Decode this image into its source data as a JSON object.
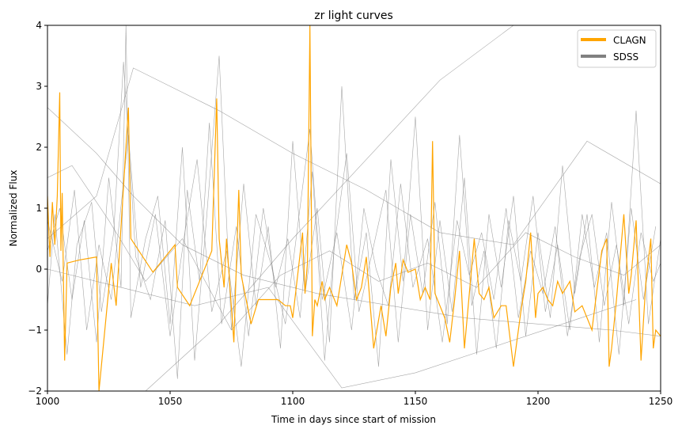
{
  "chart_data": {
    "type": "line",
    "title": "zr light curves",
    "xlabel": "Time in days since start of mission",
    "ylabel": "Normalized Flux",
    "xlim": [
      1000,
      1250
    ],
    "ylim": [
      -2,
      4
    ],
    "xticks": [
      "1000",
      "1050",
      "1100",
      "1150",
      "1200",
      "1250"
    ],
    "yticks": [
      "−2",
      "−1",
      "0",
      "1",
      "2",
      "3",
      "4"
    ],
    "grid": false,
    "legend": "top-right",
    "colors": {
      "CLAGN": "#ffa500",
      "SDSS": "#808080"
    },
    "legend_entries": [
      "CLAGN",
      "SDSS"
    ],
    "series": [
      {
        "name": "CLAGN",
        "color": "#ffa500",
        "x": [
          1000,
          1001,
          1002,
          1003,
          1004,
          1005,
          1005.5,
          1006,
          1007,
          1008,
          1013,
          1020,
          1021,
          1026,
          1028,
          1033,
          1034,
          1043,
          1052,
          1053,
          1058,
          1060,
          1067,
          1069,
          1070,
          1072,
          1073,
          1076,
          1078,
          1079,
          1083,
          1086,
          1094,
          1097,
          1099,
          1100,
          1104,
          1105,
          1106,
          1107,
          1108,
          1109,
          1110,
          1112,
          1113,
          1115,
          1118,
          1120,
          1122,
          1124,
          1126,
          1128,
          1130,
          1133,
          1136,
          1138,
          1140,
          1142,
          1143,
          1145,
          1147,
          1150,
          1152,
          1154,
          1156,
          1157,
          1158,
          1160,
          1162,
          1164,
          1166,
          1168,
          1170,
          1172,
          1174,
          1176,
          1178,
          1180,
          1182,
          1185,
          1187,
          1190,
          1193,
          1195,
          1197,
          1199,
          1200,
          1202,
          1204,
          1206,
          1208,
          1210,
          1213,
          1215,
          1218,
          1222,
          1226,
          1228,
          1229,
          1230,
          1232,
          1235,
          1237,
          1238,
          1240,
          1242,
          1244,
          1246,
          1247,
          1248,
          1250
        ],
        "y": [
          1.2,
          0.2,
          1.1,
          0.4,
          1.2,
          2.9,
          0.3,
          1.25,
          -1.5,
          0.1,
          0.15,
          0.2,
          -2,
          0.1,
          -0.6,
          2.65,
          0.5,
          -0.05,
          0.4,
          -0.3,
          -0.6,
          -0.4,
          0.3,
          2.8,
          0.5,
          -0.3,
          0.5,
          -1.2,
          1.3,
          -0.1,
          -0.9,
          -0.5,
          -0.5,
          -0.6,
          -0.6,
          -0.8,
          0.6,
          -0.4,
          0.1,
          4,
          -1.1,
          -0.5,
          -0.6,
          -0.2,
          -0.5,
          -0.3,
          -0.6,
          -0.1,
          0.4,
          0.1,
          -0.5,
          -0.3,
          0.2,
          -1.3,
          -0.6,
          -1.1,
          -0.3,
          0.1,
          -0.4,
          0.15,
          -0.05,
          0.0,
          -0.5,
          -0.3,
          -0.5,
          2.1,
          -0.4,
          -0.6,
          -0.8,
          -1.2,
          -0.5,
          0.3,
          -1.3,
          -0.4,
          0.5,
          -0.4,
          -0.5,
          -0.3,
          -0.8,
          -0.6,
          -0.6,
          -1.6,
          -0.7,
          -0.2,
          0.6,
          -0.8,
          -0.4,
          -0.3,
          -0.5,
          -0.6,
          -0.2,
          -0.4,
          -0.2,
          -0.7,
          -0.6,
          -1.0,
          0.3,
          0.5,
          -1.6,
          -1.3,
          -0.5,
          0.9,
          -0.4,
          -0.1,
          0.8,
          -1.5,
          -0.2,
          0.5,
          -1.3,
          -1.0,
          -1.1
        ]
      },
      {
        "name": "SDSS",
        "color": "#808080",
        "x": [
          1000,
          1005,
          1010,
          1015,
          1020,
          1025,
          1030,
          1032,
          1034,
          1040,
          1045,
          1050,
          1055,
          1060,
          1065,
          1070,
          1075,
          1080,
          1085,
          1090,
          1095,
          1100,
          1105,
          1110,
          1115,
          1120,
          1125,
          1130,
          1135,
          1140,
          1145,
          1150,
          1155,
          1160,
          1165,
          1170,
          1175,
          1180,
          1185,
          1190,
          1195,
          1200,
          1205,
          1210,
          1215,
          1220,
          1225,
          1230,
          1235,
          1240,
          1245,
          1250
        ],
        "y": [
          0.3,
          1.0,
          -0.5,
          0.8,
          -1.2,
          1.5,
          -0.3,
          4.0,
          -0.8,
          0.5,
          1.2,
          -0.9,
          2.0,
          -1.5,
          0.9,
          3.5,
          -1.0,
          1.4,
          -0.6,
          0.7,
          -1.3,
          2.1,
          -0.4,
          1.0,
          -1.2,
          3.0,
          -0.5,
          0.6,
          -1.6,
          1.8,
          -0.2,
          2.5,
          -1.0,
          0.8,
          -0.7,
          1.5,
          -1.4,
          0.9,
          -0.3,
          1.2,
          -1.1,
          0.6,
          -0.8,
          1.7,
          -0.4,
          0.9,
          -1.2,
          1.1,
          -0.6,
          2.6,
          -0.9,
          0.5
        ]
      },
      {
        "name": "SDSS",
        "color": "#808080",
        "x": [
          1000,
          1003,
          1008,
          1012,
          1018,
          1022,
          1027,
          1031,
          1036,
          1042,
          1048,
          1053,
          1057,
          1062,
          1066,
          1071,
          1077,
          1082,
          1088,
          1093,
          1098,
          1103,
          1108,
          1113,
          1117,
          1122,
          1127,
          1132,
          1138,
          1143,
          1148,
          1153,
          1158,
          1163,
          1168,
          1173,
          1178,
          1183,
          1188,
          1193,
          1198,
          1203,
          1208,
          1213,
          1218,
          1223,
          1228,
          1233,
          1238,
          1243,
          1248
        ],
        "y": [
          -0.6,
          0.9,
          -1.4,
          0.4,
          1.1,
          -0.7,
          0.6,
          3.4,
          0.2,
          -0.5,
          0.8,
          -1.8,
          1.3,
          -0.2,
          2.4,
          -0.9,
          0.7,
          -1.1,
          1.0,
          -0.3,
          0.5,
          -0.8,
          1.6,
          -1.5,
          0.4,
          1.9,
          -0.7,
          0.2,
          1.3,
          -1.2,
          0.9,
          -0.4,
          1.1,
          -0.9,
          2.2,
          -0.6,
          0.3,
          -1.3,
          0.8,
          -0.2,
          1.2,
          -0.7,
          0.4,
          -1.0,
          0.9,
          -0.3,
          0.6,
          -1.4,
          1.0,
          -0.5,
          0.7
        ]
      },
      {
        "name": "SDSS",
        "color": "#808080",
        "x": [
          1000,
          1020,
          1035,
          1055,
          1080,
          1110,
          1140,
          1170,
          1200,
          1230,
          1250
        ],
        "y": [
          2.65,
          1.9,
          1.2,
          0.4,
          -0.1,
          -0.4,
          -0.6,
          -0.8,
          -0.9,
          -1.0,
          -1.1
        ]
      },
      {
        "name": "SDSS",
        "color": "#808080",
        "x": [
          1000,
          1020,
          1035,
          1070,
          1100,
          1130,
          1160,
          1190,
          1220,
          1250
        ],
        "y": [
          0.5,
          1.2,
          3.3,
          2.6,
          1.9,
          1.3,
          0.6,
          0.4,
          2.1,
          1.4
        ]
      },
      {
        "name": "SDSS",
        "color": "#808080",
        "x": [
          1000,
          1030,
          1060,
          1090,
          1120,
          1150,
          1180,
          1210,
          1240
        ],
        "y": [
          0.0,
          -0.3,
          -0.6,
          -0.3,
          -1.95,
          -1.7,
          -1.3,
          -0.9,
          -0.5
        ]
      },
      {
        "name": "SDSS",
        "color": "#808080",
        "x": [
          1040,
          1070,
          1100,
          1130,
          1160,
          1190,
          1220
        ],
        "y": [
          -2.0,
          -0.9,
          0.5,
          1.8,
          3.1,
          4.0,
          4.2
        ]
      },
      {
        "name": "SDSS",
        "color": "#808080",
        "x": [
          1000,
          1010,
          1025,
          1040,
          1055,
          1075,
          1095,
          1115,
          1135,
          1155,
          1175,
          1195,
          1215,
          1235,
          1250
        ],
        "y": [
          1.5,
          1.7,
          0.8,
          -0.2,
          0.5,
          -1.0,
          -0.1,
          0.3,
          -0.2,
          0.1,
          -0.3,
          0.6,
          0.2,
          -0.1,
          0.4
        ]
      },
      {
        "name": "SDSS",
        "color": "#808080",
        "x": [
          1000,
          1006,
          1011,
          1016,
          1021,
          1026,
          1033,
          1038,
          1044,
          1050,
          1056,
          1061,
          1067,
          1073,
          1079,
          1085,
          1091,
          1097,
          1102,
          1107,
          1112,
          1118,
          1124,
          1129,
          1134,
          1139,
          1144,
          1149,
          1155,
          1161,
          1167,
          1172,
          1177,
          1182,
          1187,
          1192,
          1197,
          1202,
          1207,
          1212,
          1217,
          1222,
          1227,
          1232,
          1237,
          1242,
          1247,
          1250
        ],
        "y": [
          0.8,
          -0.2,
          1.3,
          -1.0,
          0.4,
          -0.5,
          2.2,
          -0.3,
          0.9,
          -1.1,
          0.6,
          1.8,
          -0.7,
          0.3,
          -1.6,
          0.9,
          0.1,
          -0.9,
          0.7,
          2.3,
          -0.5,
          0.6,
          -1.0,
          1.0,
          0.0,
          -0.6,
          1.4,
          -0.3,
          0.5,
          -1.2,
          0.8,
          -0.1,
          0.6,
          -0.5,
          1.0,
          -0.8,
          0.3,
          -0.4,
          0.7,
          -1.1,
          0.2,
          0.9,
          -0.6,
          0.4,
          -0.9,
          0.6,
          -0.2,
          0.1
        ]
      }
    ]
  }
}
